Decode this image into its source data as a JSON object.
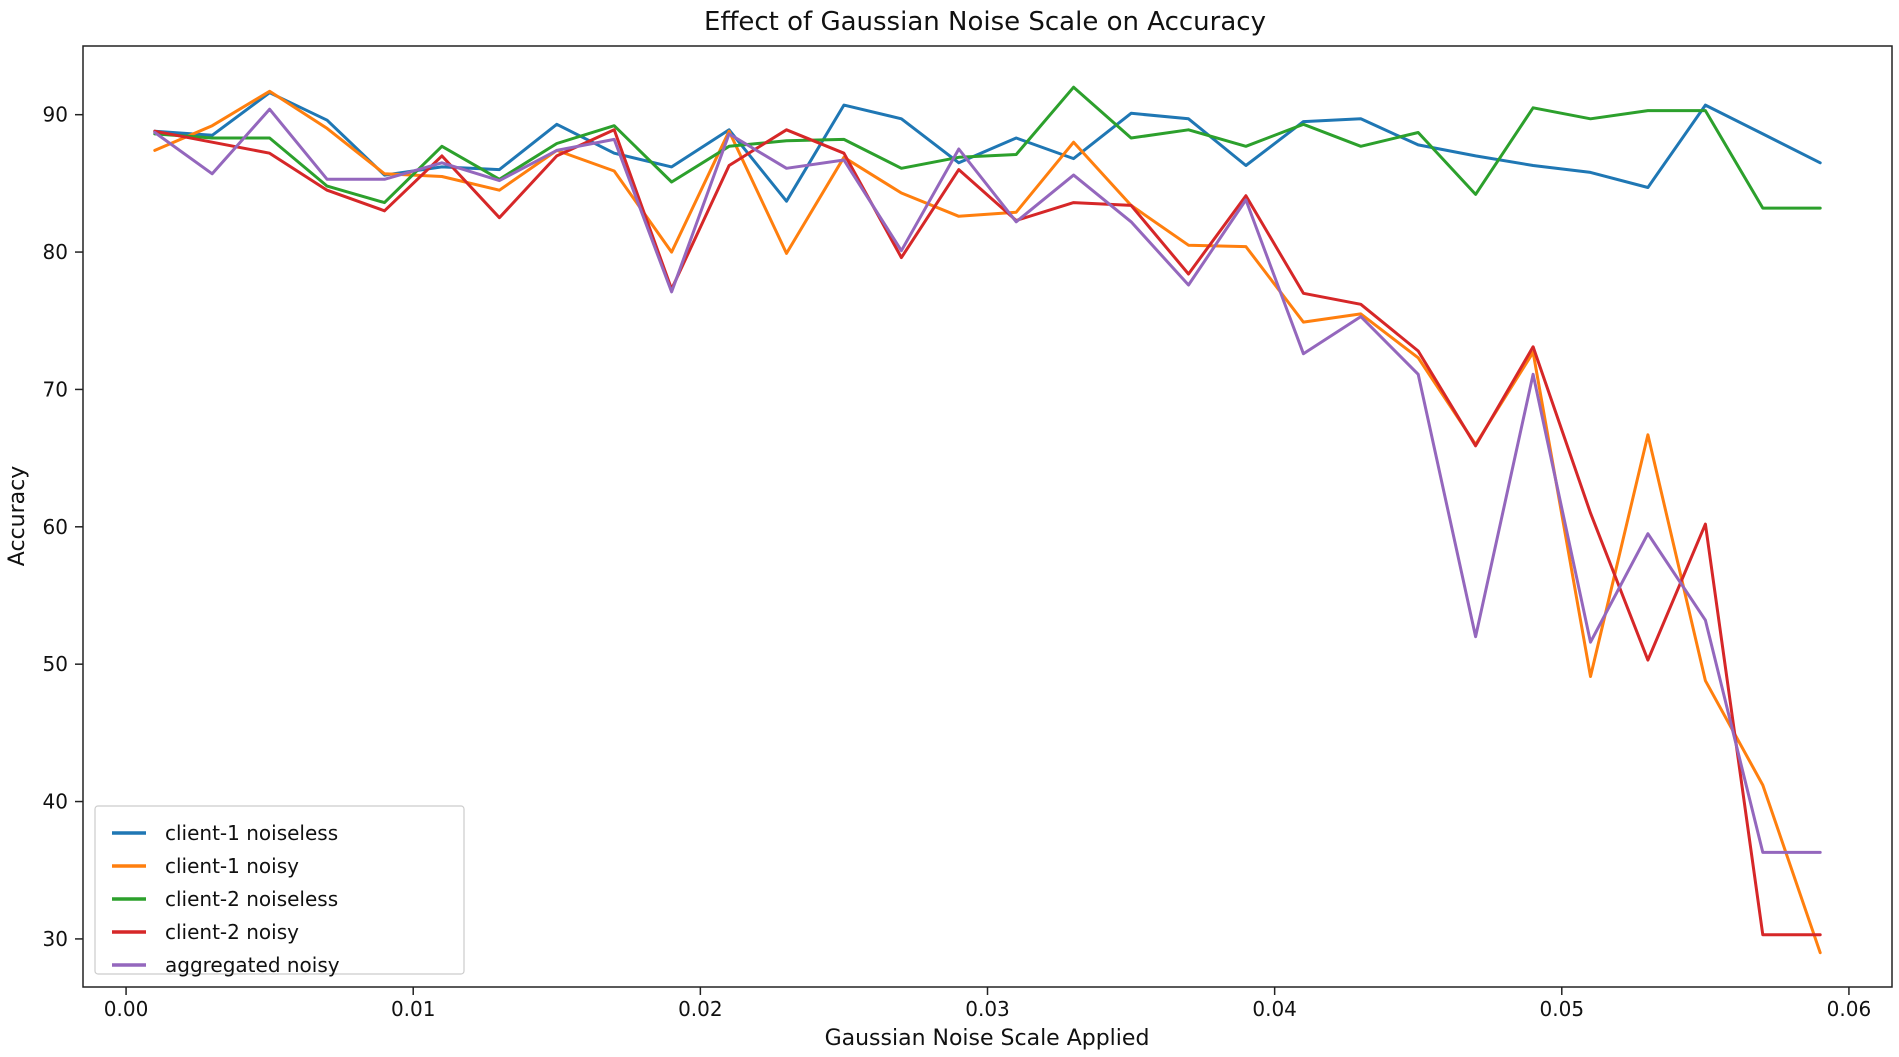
{
  "chart_data": {
    "type": "line",
    "title": "Effect of Gaussian Noise Scale on Accuracy",
    "xlabel": "Gaussian Noise Scale Applied",
    "ylabel": "Accuracy",
    "xlim": [
      -0.0015,
      0.0615
    ],
    "ylim": [
      26.5,
      95
    ],
    "xticks": [
      0.0,
      0.01,
      0.02,
      0.03,
      0.04,
      0.05,
      0.06
    ],
    "xtick_labels": [
      "0.00",
      "0.01",
      "0.02",
      "0.03",
      "0.04",
      "0.05",
      "0.06"
    ],
    "yticks": [
      30,
      40,
      50,
      60,
      70,
      80,
      90
    ],
    "ytick_labels": [
      "30",
      "40",
      "50",
      "60",
      "70",
      "80",
      "90"
    ],
    "grid": false,
    "legend_position": "lower-left",
    "x": [
      0.001,
      0.003,
      0.005,
      0.007,
      0.009,
      0.011,
      0.013,
      0.015,
      0.017,
      0.019,
      0.021,
      0.023,
      0.025,
      0.027,
      0.029,
      0.031,
      0.033,
      0.035,
      0.037,
      0.039,
      0.041,
      0.043,
      0.045,
      0.047,
      0.049,
      0.051,
      0.053,
      0.055,
      0.057,
      0.059
    ],
    "series": [
      {
        "name": "client-1 noiseless",
        "color": "#1f77b4",
        "values": [
          88.8,
          88.5,
          91.6,
          89.6,
          85.6,
          86.2,
          86.0,
          89.3,
          87.2,
          86.2,
          88.9,
          83.7,
          90.7,
          89.7,
          86.5,
          88.3,
          86.8,
          90.1,
          89.7,
          86.3,
          89.5,
          89.7,
          87.8,
          87.0,
          86.3,
          85.8,
          84.7,
          90.7,
          88.6,
          86.5
        ]
      },
      {
        "name": "client-1 noisy",
        "color": "#ff7f0e",
        "values": [
          87.4,
          89.2,
          91.7,
          89.0,
          85.7,
          85.5,
          84.5,
          87.4,
          85.9,
          80.0,
          88.8,
          79.9,
          86.9,
          84.3,
          82.6,
          82.9,
          88.0,
          83.4,
          80.5,
          80.4,
          74.9,
          75.5,
          72.3,
          66.0,
          72.7,
          49.1,
          66.7,
          48.8,
          41.2,
          29.0
        ]
      },
      {
        "name": "client-2 noiseless",
        "color": "#2ca02c",
        "values": [
          88.6,
          88.3,
          88.3,
          84.8,
          83.6,
          87.7,
          85.3,
          87.9,
          89.2,
          85.1,
          87.7,
          88.1,
          88.2,
          86.1,
          86.9,
          87.1,
          92.0,
          88.3,
          88.9,
          87.7,
          89.3,
          87.7,
          88.7,
          84.2,
          90.5,
          89.7,
          90.3,
          90.3,
          83.2,
          83.2
        ]
      },
      {
        "name": "client-2 noisy",
        "color": "#d62728",
        "values": [
          88.8,
          88.0,
          87.2,
          84.5,
          83.0,
          87.0,
          82.5,
          87.0,
          88.9,
          77.3,
          86.3,
          88.9,
          87.2,
          79.6,
          86.0,
          82.3,
          83.6,
          83.4,
          78.4,
          84.1,
          77.0,
          76.2,
          72.8,
          65.9,
          73.1,
          61.0,
          50.3,
          60.2,
          30.3,
          30.3
        ]
      },
      {
        "name": "aggregated noisy",
        "color": "#9467bd",
        "values": [
          88.7,
          85.7,
          90.4,
          85.3,
          85.3,
          86.5,
          85.2,
          87.4,
          88.2,
          77.1,
          88.6,
          86.1,
          86.7,
          80.1,
          87.5,
          82.2,
          85.6,
          82.2,
          77.6,
          83.8,
          72.6,
          75.3,
          71.1,
          52.0,
          71.1,
          51.6,
          59.5,
          53.2,
          36.3,
          36.3
        ]
      }
    ]
  }
}
